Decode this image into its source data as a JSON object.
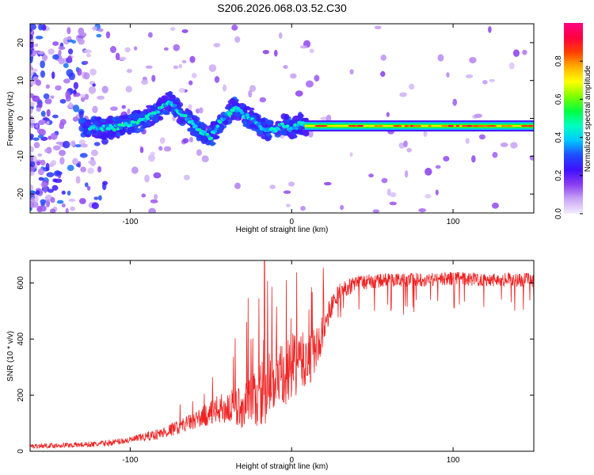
{
  "title": "S206.2026.068.03.52.C30",
  "chart_data": [
    {
      "type": "heatmap",
      "xlabel": "Height of straight line (km)",
      "ylabel": "Frequency (Hz)",
      "xlim": [
        -162,
        150
      ],
      "ylim": [
        -25,
        25
      ],
      "x_ticks": [
        -100,
        0,
        100
      ],
      "x_tick_labels": [
        "-100",
        "0",
        "100"
      ],
      "y_ticks": [
        -20,
        -10,
        0,
        10,
        20
      ],
      "y_tick_labels": [
        "-20",
        "-10",
        "0",
        "10",
        "20"
      ],
      "colorbar": {
        "label": "Normalized spectral amplitude",
        "range": [
          0,
          1
        ],
        "ticks": [
          0.0,
          0.2,
          0.4,
          0.6,
          0.8
        ],
        "tick_labels": [
          "0.0",
          "0.2",
          "0.4",
          "0.6",
          "0.8"
        ],
        "colors": [
          "#f4eefc",
          "#c9a6f5",
          "#8a3cf0",
          "#3f10ff",
          "#1f4dff",
          "#00c8ff",
          "#00ffc0",
          "#00ff40",
          "#7fff00",
          "#ffff00",
          "#ffb000",
          "#ff4000",
          "#ff0040",
          "#ff0080"
        ]
      },
      "ridge_km": [
        -125,
        -110,
        -100,
        -90,
        -80,
        -75,
        -70,
        -60,
        -55,
        -50,
        -45,
        -40,
        -35,
        -30,
        -25,
        -20,
        -15,
        -10,
        -5,
        0,
        5,
        10
      ],
      "ridge_hz": [
        -2.5,
        -2.5,
        -1.5,
        0,
        3,
        4.5,
        2,
        -2,
        -4,
        -5,
        -1,
        1,
        3,
        1,
        0,
        -2,
        -3,
        -3,
        -1.5,
        -3,
        -1.5,
        -2
      ],
      "steady_tone": {
        "start_km": 8,
        "end_km": 150,
        "frequency_hz": -2
      }
    },
    {
      "type": "line",
      "xlabel": "Height of straight line (km)",
      "ylabel": "SNR (10 * v/v)",
      "xlim": [
        -162,
        150
      ],
      "ylim": [
        0,
        680
      ],
      "x_ticks": [
        -100,
        0,
        100
      ],
      "x_tick_labels": [
        "-100",
        "0",
        "100"
      ],
      "y_ticks": [
        0,
        200,
        400,
        600
      ],
      "y_tick_labels": [
        "0",
        "200",
        "400",
        "600"
      ],
      "color": "#ee2222",
      "trend_km": [
        -162,
        -120,
        -100,
        -80,
        -60,
        -45,
        -30,
        -25,
        -20,
        -15,
        -10,
        -5,
        0,
        5,
        10,
        15,
        20,
        25,
        30,
        40,
        60,
        100,
        150
      ],
      "trend_snr": [
        18,
        25,
        40,
        65,
        110,
        150,
        160,
        170,
        200,
        230,
        260,
        250,
        300,
        320,
        320,
        360,
        430,
        520,
        570,
        600,
        610,
        615,
        610
      ],
      "noise_km": [
        -162,
        -100,
        -60,
        -40,
        -30,
        -20,
        -10,
        0,
        10,
        20,
        30,
        60,
        150
      ],
      "noise_amp": [
        8,
        12,
        30,
        60,
        80,
        120,
        130,
        120,
        100,
        60,
        30,
        25,
        25
      ]
    }
  ]
}
